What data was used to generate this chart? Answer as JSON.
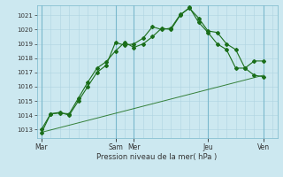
{
  "xlabel": "Pression niveau de la mer( hPa )",
  "ylim": [
    1012.4,
    1021.7
  ],
  "yticks": [
    1013,
    1014,
    1015,
    1016,
    1017,
    1018,
    1019,
    1020,
    1021
  ],
  "bg_color": "#cce8f0",
  "grid_color_minor": "#aed4e0",
  "grid_color_major": "#7ab8cc",
  "line_color": "#1a6e1a",
  "xtick_labels": [
    "Mar",
    "Sam",
    "Mer",
    "Jeu",
    "Ven"
  ],
  "xtick_positions": [
    0,
    8,
    10,
    18,
    24
  ],
  "xlim": [
    -0.5,
    25.5
  ],
  "total_points": 26,
  "series1_x": [
    0,
    1,
    2,
    3,
    4,
    5,
    6,
    7,
    8,
    9,
    10,
    11,
    12,
    13,
    14,
    15,
    16,
    17,
    18,
    19,
    20,
    21,
    22,
    23,
    24
  ],
  "series1_y": [
    1012.75,
    1014.1,
    1014.15,
    1014.1,
    1015.2,
    1016.3,
    1017.3,
    1017.75,
    1018.5,
    1019.1,
    1018.75,
    1019.0,
    1019.5,
    1020.1,
    1020.0,
    1021.0,
    1021.55,
    1020.5,
    1019.8,
    1019.0,
    1018.6,
    1017.3,
    1017.3,
    1017.8,
    1017.8
  ],
  "series2_x": [
    0,
    1,
    2,
    3,
    4,
    5,
    6,
    7,
    8,
    9,
    10,
    11,
    12,
    13,
    14,
    15,
    16,
    17,
    18,
    19,
    20,
    21,
    22,
    23,
    24
  ],
  "series2_y": [
    1013.0,
    1014.1,
    1014.2,
    1014.0,
    1015.0,
    1016.0,
    1017.0,
    1017.5,
    1019.1,
    1018.9,
    1019.0,
    1019.4,
    1020.2,
    1020.0,
    1020.1,
    1021.05,
    1021.5,
    1020.8,
    1019.9,
    1019.8,
    1019.0,
    1018.6,
    1017.3,
    1016.8,
    1016.7
  ],
  "series3_x": [
    0,
    24
  ],
  "series3_y": [
    1012.8,
    1016.8
  ],
  "vline_positions": [
    0,
    8,
    10,
    18,
    24
  ]
}
